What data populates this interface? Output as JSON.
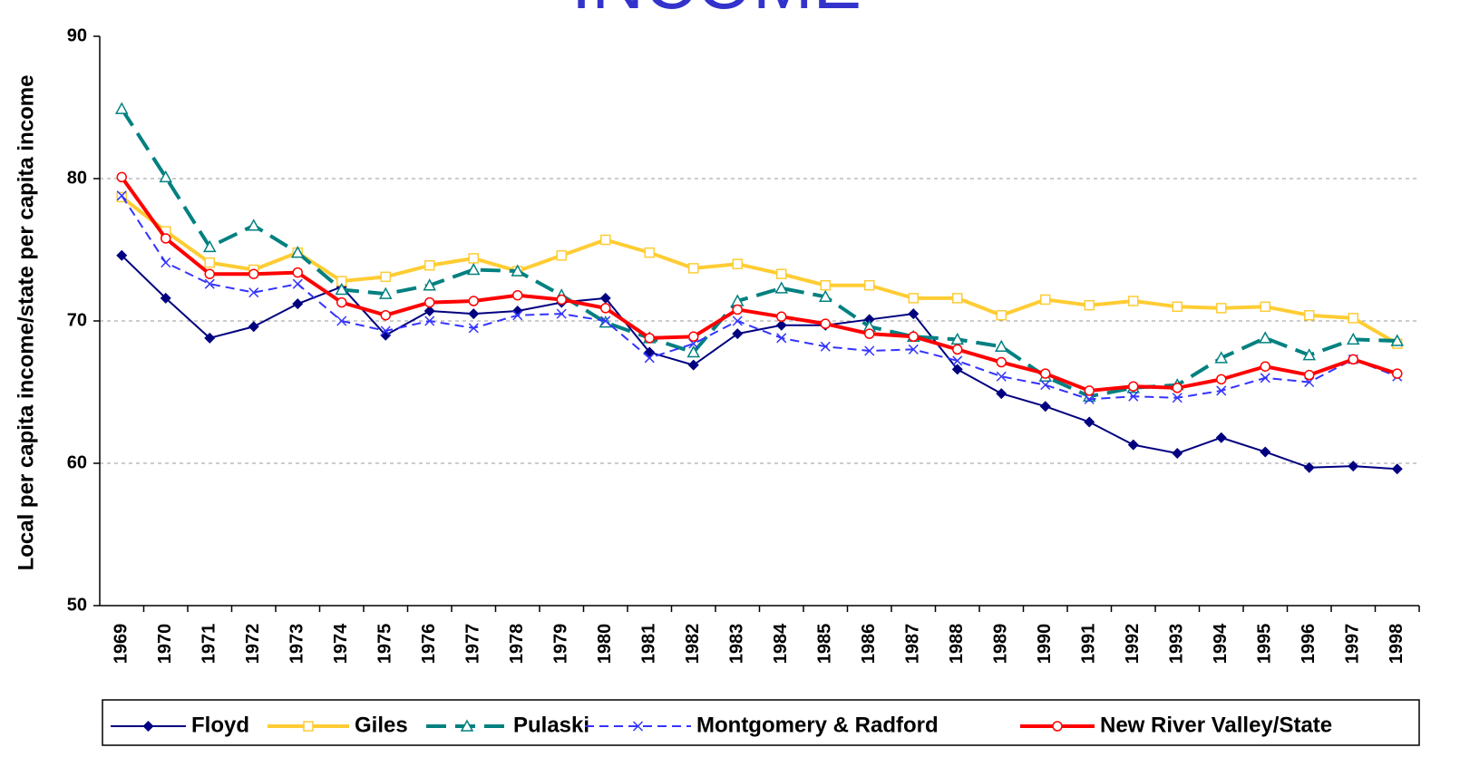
{
  "chart_data": {
    "type": "line",
    "title": "INCOME",
    "ylabel": "Local per capita income/state per capita income",
    "categories": [
      "1969",
      "1970",
      "1971",
      "1972",
      "1973",
      "1974",
      "1975",
      "1976",
      "1977",
      "1978",
      "1979",
      "1980",
      "1981",
      "1982",
      "1983",
      "1984",
      "1985",
      "1986",
      "1987",
      "1988",
      "1989",
      "1990",
      "1991",
      "1992",
      "1993",
      "1994",
      "1995",
      "1996",
      "1997",
      "1998"
    ],
    "series": [
      {
        "name": "Floyd",
        "color": "#000080",
        "marker": "diamond",
        "dash": "none",
        "width": 2,
        "values": [
          74.6,
          71.6,
          68.8,
          69.6,
          71.2,
          72.4,
          69.0,
          70.7,
          70.5,
          70.7,
          71.3,
          71.6,
          67.8,
          66.9,
          69.1,
          69.7,
          69.7,
          70.1,
          70.5,
          66.6,
          64.9,
          64.0,
          62.9,
          61.3,
          60.7,
          61.8,
          60.8,
          59.7,
          59.8,
          59.6
        ]
      },
      {
        "name": "Giles",
        "color": "#ffcc33",
        "marker": "square",
        "dash": "none",
        "width": 4,
        "values": [
          78.7,
          76.3,
          74.1,
          73.6,
          74.8,
          72.8,
          73.1,
          73.9,
          74.4,
          73.5,
          74.6,
          75.7,
          74.8,
          73.7,
          74.0,
          73.3,
          72.5,
          72.5,
          71.6,
          71.6,
          70.4,
          71.5,
          71.1,
          71.4,
          71.0,
          70.9,
          71.0,
          70.4,
          70.2,
          68.4
        ]
      },
      {
        "name": "Pulaski",
        "color": "#008080",
        "marker": "triangle",
        "dash": "22 10",
        "width": 4,
        "values": [
          84.9,
          80.1,
          75.2,
          76.7,
          74.8,
          72.2,
          71.9,
          72.5,
          73.6,
          73.5,
          71.8,
          69.9,
          68.8,
          67.8,
          71.4,
          72.3,
          71.7,
          69.6,
          68.9,
          68.7,
          68.2,
          66.1,
          64.7,
          65.3,
          65.5,
          67.4,
          68.8,
          67.6,
          68.7,
          68.6
        ]
      },
      {
        "name": "Montgomery & Radford",
        "color": "#3333ff",
        "marker": "x",
        "dash": "10 6",
        "width": 2,
        "values": [
          78.8,
          74.1,
          72.6,
          72.0,
          72.6,
          70.0,
          69.3,
          70.0,
          69.5,
          70.4,
          70.5,
          70.0,
          67.4,
          68.4,
          70.0,
          68.8,
          68.2,
          67.9,
          68.0,
          67.2,
          66.1,
          65.5,
          64.5,
          64.7,
          64.6,
          65.1,
          66.0,
          65.7,
          67.3,
          66.1
        ]
      },
      {
        "name": "New River Valley/State",
        "color": "#ff0000",
        "marker": "circle",
        "dash": "none",
        "width": 4,
        "values": [
          80.1,
          75.8,
          73.3,
          73.3,
          73.4,
          71.3,
          70.4,
          71.3,
          71.4,
          71.8,
          71.5,
          70.9,
          68.8,
          68.9,
          70.8,
          70.3,
          69.8,
          69.1,
          68.9,
          68.0,
          67.1,
          66.3,
          65.1,
          65.4,
          65.3,
          65.9,
          66.8,
          66.2,
          67.3,
          66.3
        ]
      }
    ],
    "ylim": [
      50,
      90
    ],
    "yticks": [
      50,
      60,
      70,
      80,
      90
    ],
    "grid": true,
    "legend": "bottom"
  }
}
